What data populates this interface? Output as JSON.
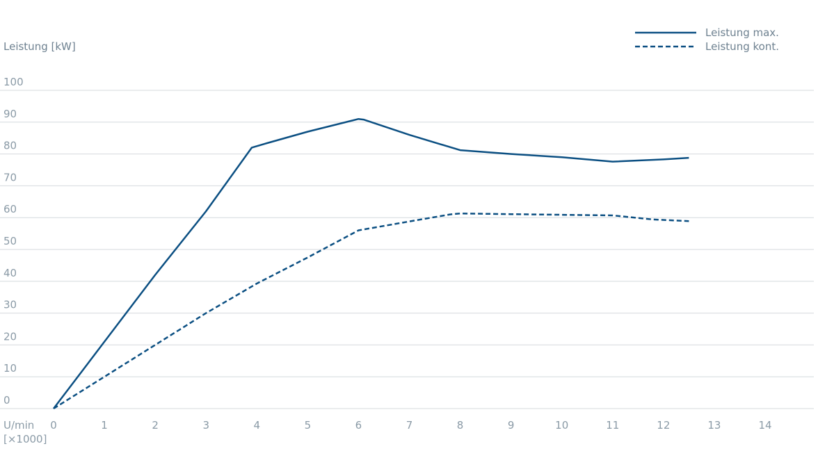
{
  "chart_data": {
    "type": "line",
    "title": "",
    "ylabel": "Leistung [kW]",
    "xlabel": "U/min",
    "xlabel_unit": "[×1000]",
    "xlim": [
      0,
      14
    ],
    "ylim": [
      0,
      100
    ],
    "x_ticks": [
      "0",
      "1",
      "2",
      "3",
      "4",
      "5",
      "6",
      "7",
      "8",
      "9",
      "10",
      "11",
      "12",
      "13",
      "14"
    ],
    "y_ticks": [
      "0",
      "10",
      "20",
      "30",
      "40",
      "50",
      "60",
      "70",
      "80",
      "90",
      "100"
    ],
    "grid": true,
    "legend_position": "top-right",
    "colors": {
      "series": "#0b4f82",
      "grid": "#d4d9dd",
      "text": "#8a9aa6"
    },
    "series": [
      {
        "name": "Leistung max.",
        "style": "solid",
        "points": [
          [
            0,
            0
          ],
          [
            1,
            21
          ],
          [
            2,
            42
          ],
          [
            3,
            62
          ],
          [
            3.9,
            82
          ],
          [
            4.2,
            83.4
          ],
          [
            5,
            87
          ],
          [
            6,
            91
          ],
          [
            6.1,
            90.8
          ],
          [
            7,
            86
          ],
          [
            8,
            81.2
          ],
          [
            9,
            80
          ],
          [
            10,
            79
          ],
          [
            11,
            77.6
          ],
          [
            12,
            78.3
          ],
          [
            12.5,
            78.8
          ]
        ]
      },
      {
        "name": "Leistung kont.",
        "style": "dashed",
        "points": [
          [
            0,
            0
          ],
          [
            1,
            10
          ],
          [
            2,
            20
          ],
          [
            3,
            30
          ],
          [
            4,
            39.3
          ],
          [
            5,
            47.5
          ],
          [
            6,
            56
          ],
          [
            7,
            58.8
          ],
          [
            7.8,
            61
          ],
          [
            8,
            61.3
          ],
          [
            9,
            61.1
          ],
          [
            10,
            60.9
          ],
          [
            11,
            60.7
          ],
          [
            11.8,
            59.4
          ],
          [
            12.5,
            58.9
          ]
        ]
      }
    ]
  }
}
